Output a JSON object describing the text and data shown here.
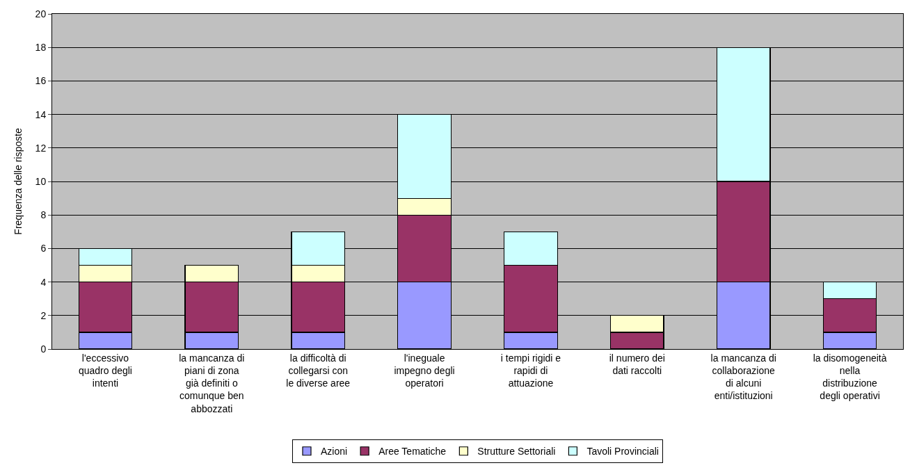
{
  "chart_data": {
    "type": "bar",
    "stacked": true,
    "ylabel": "Frequenza delle risposte",
    "categories": [
      "l'eccessivo quadro degli intenti",
      "la mancanza di piani di zona già definiti o comunque ben abbozzati",
      "la difficoltà di collegarsi con le diverse aree",
      "l'ineguale impegno degli operatori",
      "i tempi rigidi e rapidi di attuazione",
      "il numero dei dati raccolti",
      "la mancanza di collaborazione di alcuni enti/istituzioni",
      "la disomogeneità nella distribuzione degli operativi"
    ],
    "series": [
      {
        "name": "Azioni",
        "color": "#9999ff",
        "values": [
          1,
          1,
          1,
          4,
          1,
          0,
          4,
          1
        ]
      },
      {
        "name": "Aree Tematiche",
        "color": "#993366",
        "values": [
          3,
          3,
          3,
          4,
          4,
          1,
          6,
          2
        ]
      },
      {
        "name": "Strutture Settoriali",
        "color": "#ffffcc",
        "values": [
          1,
          1,
          1,
          1,
          0,
          1,
          0,
          0
        ]
      },
      {
        "name": "Tavoli Provinciali",
        "color": "#ccffff",
        "values": [
          1,
          0,
          2,
          5,
          2,
          0,
          8,
          1
        ]
      }
    ],
    "ylim": [
      0,
      20
    ],
    "yticks": [
      0,
      2,
      4,
      6,
      8,
      10,
      12,
      14,
      16,
      18,
      20
    ],
    "grid": "y",
    "legend": "bottom"
  }
}
